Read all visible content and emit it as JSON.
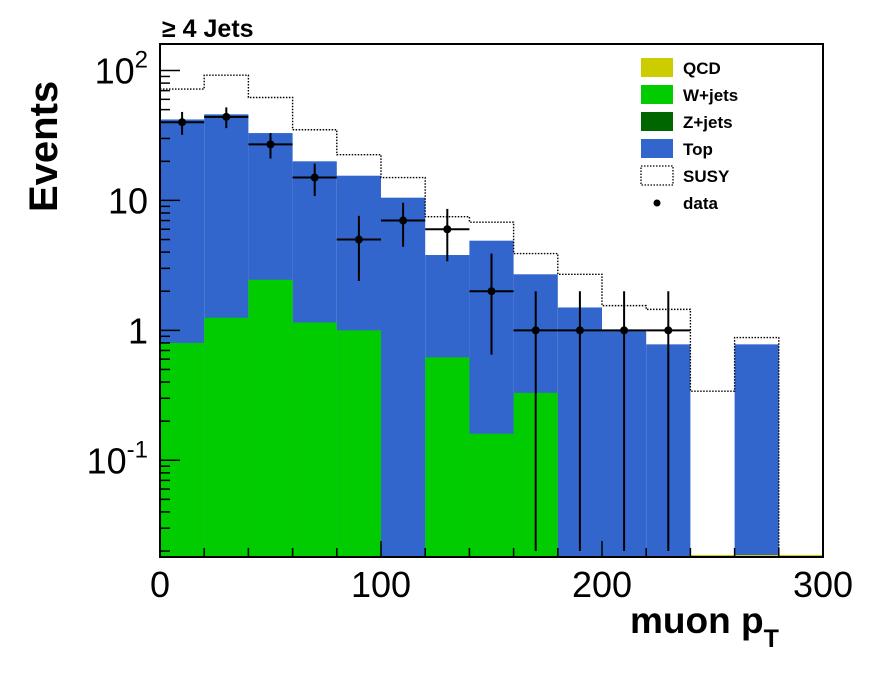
{
  "chart_data": {
    "type": "bar",
    "title": "≥ 4 Jets",
    "xlabel": "muon p",
    "xlabel_sub": "T",
    "ylabel": "Events",
    "x_scale": "linear",
    "y_scale": "log",
    "xlim": [
      0,
      300
    ],
    "ylim": [
      0.018,
      160
    ],
    "bin_edges": [
      0,
      20,
      40,
      60,
      80,
      100,
      120,
      140,
      160,
      180,
      200,
      220,
      240,
      260,
      280,
      300
    ],
    "x_ticks": [
      {
        "value": 0,
        "label": "0"
      },
      {
        "value": 100,
        "label": "100"
      },
      {
        "value": 200,
        "label": "200"
      },
      {
        "value": 300,
        "label": "300"
      }
    ],
    "y_ticks": [
      {
        "value": 0.1,
        "base": "10",
        "exp": "-1"
      },
      {
        "value": 1,
        "base": "1",
        "exp": ""
      },
      {
        "value": 10,
        "base": "10",
        "exp": ""
      },
      {
        "value": 100,
        "base": "10",
        "exp": "2"
      }
    ],
    "grid": false,
    "legend_position": "top-right",
    "series": [
      {
        "name": "W+jets",
        "kind": "filled",
        "color": "#00cc00",
        "values": [
          0.8,
          1.25,
          2.45,
          1.15,
          1.0,
          0,
          0.62,
          0.16,
          0.33,
          0,
          0,
          0,
          0,
          0,
          0
        ]
      },
      {
        "name": "Top",
        "kind": "filled",
        "color": "#3366cc",
        "values": [
          42,
          46,
          33,
          20,
          15.5,
          10.5,
          3.8,
          4.9,
          2.7,
          1.5,
          1.0,
          0.78,
          0,
          0.78,
          0
        ]
      },
      {
        "name": "SUSY",
        "kind": "outline",
        "color": "#000000",
        "values": [
          72,
          92,
          62,
          35,
          22.5,
          15,
          7.5,
          6.8,
          3.9,
          2.7,
          1.55,
          1.45,
          0.34,
          0.88,
          0
        ]
      },
      {
        "name": "data",
        "kind": "points",
        "color": "#000000",
        "x": [
          10,
          30,
          50,
          70,
          90,
          110,
          130,
          150,
          170,
          190,
          210,
          230
        ],
        "values": [
          40,
          44,
          27,
          15,
          5,
          7,
          6,
          2,
          1,
          1,
          1,
          1
        ],
        "err_low": [
          8,
          8,
          6,
          4.2,
          2.6,
          2.6,
          2.6,
          1.35,
          0.98,
          0.98,
          0.98,
          0.98
        ],
        "err_high": [
          8,
          8,
          6,
          4.2,
          2.6,
          2.6,
          2.6,
          1.9,
          1.0,
          1.0,
          1.0,
          1.0
        ]
      }
    ],
    "legend": [
      {
        "label": "QCD",
        "swatch": "fill",
        "color": "#cccc00"
      },
      {
        "label": "W+jets",
        "swatch": "fill",
        "color": "#00cc00"
      },
      {
        "label": "Z+jets",
        "swatch": "fill",
        "color": "#006600"
      },
      {
        "label": "Top",
        "swatch": "fill",
        "color": "#3366cc"
      },
      {
        "label": "SUSY",
        "swatch": "outline",
        "color": "#000000"
      },
      {
        "label": "data",
        "swatch": "marker",
        "color": "#000000"
      }
    ]
  }
}
